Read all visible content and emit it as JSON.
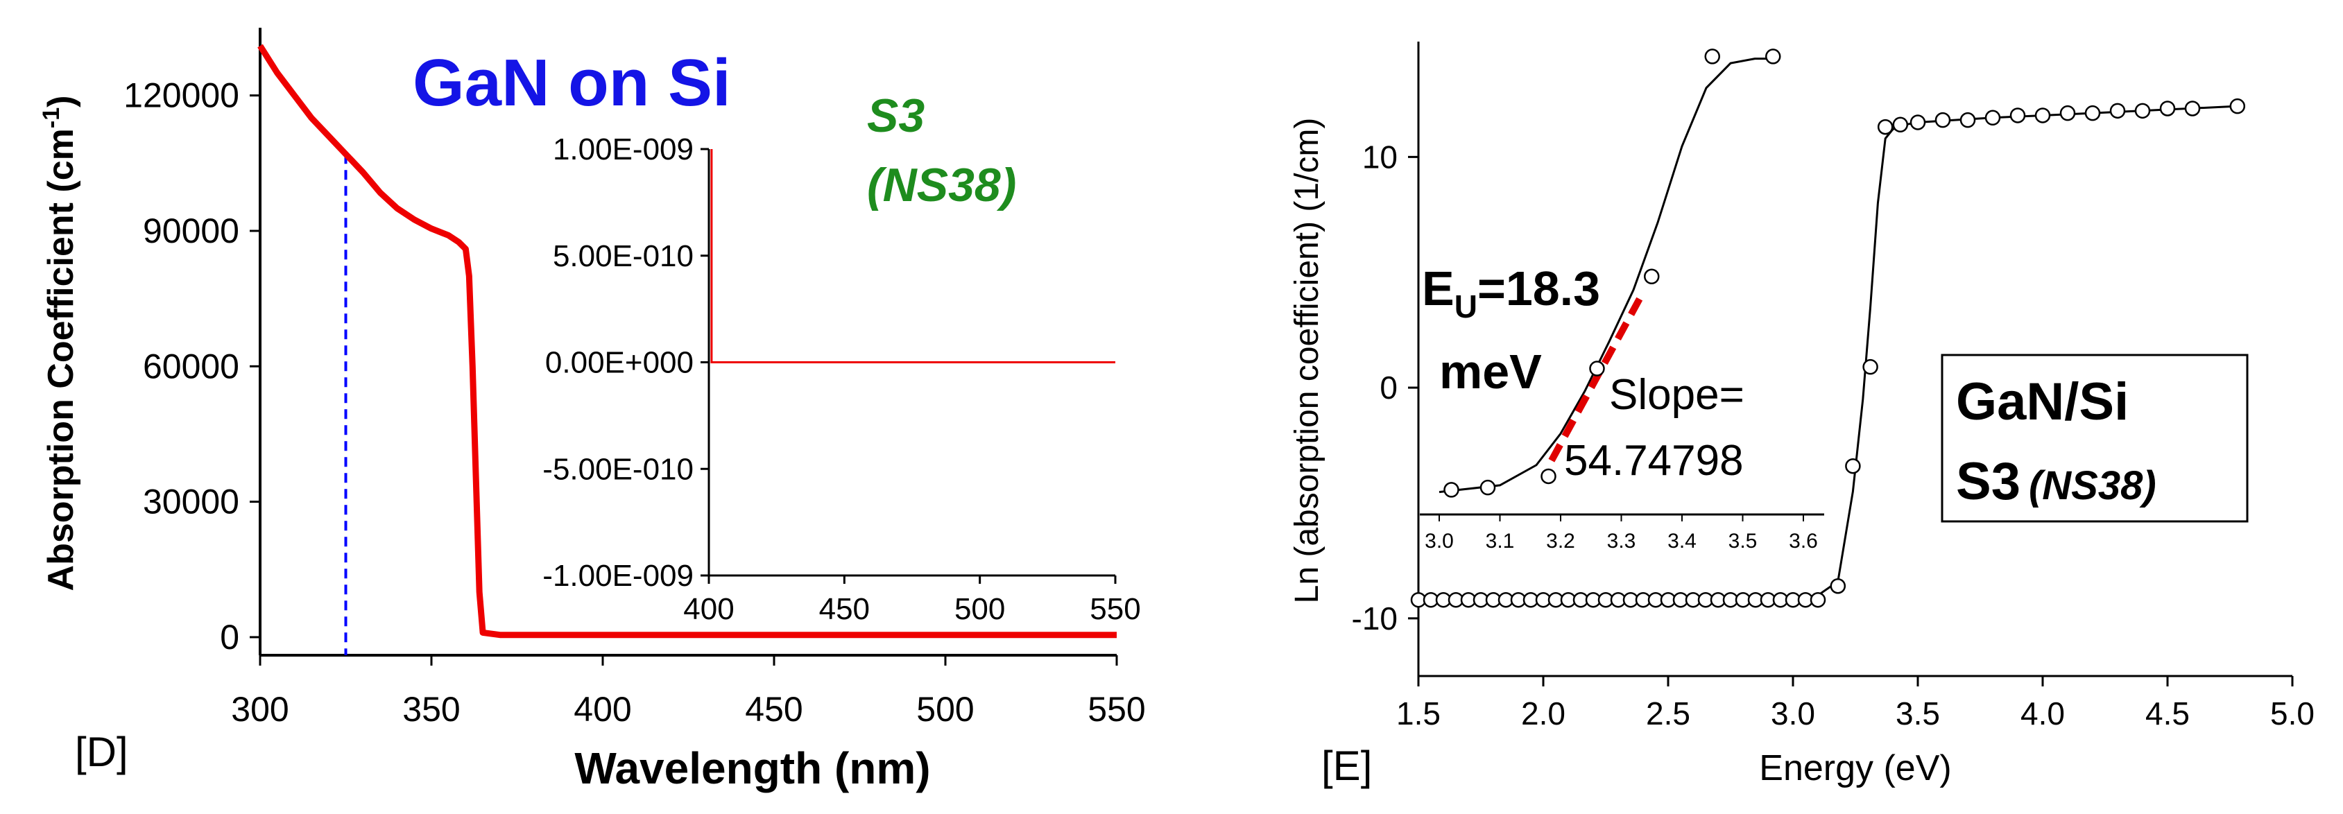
{
  "chart_data": [
    {
      "type": "line",
      "panel_label": "[D]",
      "title": "GaN on Si",
      "sample": [
        "S3",
        "(NS38)"
      ],
      "xlabel": "Wavelength (nm)",
      "ylabel": "Absorption Coefficient (cm",
      "ylabel_sup": "-1",
      "ylabel_end": ")",
      "xlim": [
        300,
        550
      ],
      "ylim": [
        -4000,
        135000
      ],
      "xticks": [
        "300",
        "350",
        "400",
        "450",
        "500",
        "550"
      ],
      "yticks": [
        "0",
        "30000",
        "60000",
        "90000",
        "120000"
      ],
      "marker_line_x": 325,
      "colors": {
        "curve": "#ee0000",
        "marker": "#0000ff",
        "title": "#1414e6",
        "sample": "#1e8c1e"
      },
      "series": [
        {
          "name": "absorption",
          "x": [
            300,
            305,
            310,
            315,
            320,
            325,
            330,
            335,
            340,
            345,
            350,
            355,
            358,
            360,
            361,
            362,
            363,
            364,
            365,
            370,
            400,
            450,
            500,
            550
          ],
          "y": [
            131000,
            125000,
            120000,
            115000,
            111000,
            107000,
            103000,
            98500,
            95000,
            92500,
            90500,
            89000,
            87500,
            86000,
            80000,
            60000,
            35000,
            10000,
            1000,
            500,
            500,
            500,
            500,
            500
          ]
        }
      ],
      "inset": {
        "type": "line",
        "xlim": [
          400,
          550
        ],
        "ylim": [
          -1e-09,
          1e-09
        ],
        "xticks": [
          "400",
          "450",
          "500",
          "550"
        ],
        "yticks": [
          "-1.00E-009",
          "-5.00E-010",
          "0.00E+000",
          "5.00E-010",
          "1.00E-009"
        ],
        "series": [
          {
            "name": "inset",
            "x": [
              401,
              401,
              402,
              550
            ],
            "y": [
              1e-09,
              0,
              0,
              0
            ]
          }
        ]
      }
    },
    {
      "type": "scatter",
      "panel_label": "[E]",
      "xlabel": "Energy (eV)",
      "ylabel": "Ln (absorption coefficient) (1/cm)",
      "xlim": [
        1.5,
        5.0
      ],
      "ylim": [
        -12.5,
        15
      ],
      "xticks": [
        "1.5",
        "2.0",
        "2.5",
        "3.0",
        "3.5",
        "4.0",
        "4.5",
        "5.0"
      ],
      "yticks": [
        "-10",
        "0",
        "10"
      ],
      "legend": {
        "line1": "GaN/Si",
        "line2": "S3",
        "line2_italic": "(NS38)"
      },
      "series": [
        {
          "name": "data",
          "x": [
            1.5,
            1.55,
            1.6,
            1.65,
            1.7,
            1.75,
            1.8,
            1.85,
            1.9,
            1.95,
            2.0,
            2.05,
            2.1,
            2.15,
            2.2,
            2.25,
            2.3,
            2.35,
            2.4,
            2.45,
            2.5,
            2.55,
            2.6,
            2.65,
            2.7,
            2.75,
            2.8,
            2.85,
            2.9,
            2.95,
            3.0,
            3.05,
            3.1,
            3.18,
            3.24,
            3.31,
            3.37,
            3.43,
            3.5,
            3.6,
            3.7,
            3.8,
            3.9,
            4.0,
            4.1,
            4.2,
            4.3,
            4.4,
            4.5,
            4.6,
            4.78
          ],
          "y": [
            -9.2,
            -9.2,
            -9.2,
            -9.2,
            -9.2,
            -9.2,
            -9.2,
            -9.2,
            -9.2,
            -9.2,
            -9.2,
            -9.2,
            -9.2,
            -9.2,
            -9.2,
            -9.2,
            -9.2,
            -9.2,
            -9.2,
            -9.2,
            -9.2,
            -9.2,
            -9.2,
            -9.2,
            -9.2,
            -9.2,
            -9.2,
            -9.2,
            -9.2,
            -9.2,
            -9.2,
            -9.2,
            -9.2,
            -8.6,
            -3.4,
            0.9,
            11.3,
            11.4,
            11.5,
            11.6,
            11.6,
            11.7,
            11.8,
            11.8,
            11.9,
            11.9,
            12.0,
            12.0,
            12.1,
            12.1,
            12.2
          ]
        },
        {
          "name": "fit",
          "x": [
            1.5,
            2.0,
            2.5,
            3.0,
            3.1,
            3.18,
            3.24,
            3.28,
            3.31,
            3.34,
            3.37,
            3.4,
            3.45,
            3.5,
            3.8,
            4.2,
            4.78
          ],
          "y": [
            -9.2,
            -9.2,
            -9.2,
            -9.15,
            -9.0,
            -8.4,
            -4.5,
            -0.5,
            3.5,
            8.0,
            10.8,
            11.2,
            11.4,
            11.5,
            11.7,
            11.9,
            12.2
          ]
        }
      ],
      "inset": {
        "xlim": [
          3.0,
          3.6
        ],
        "xticks": [
          "3.0",
          "3.1",
          "3.2",
          "3.3",
          "3.4",
          "3.5",
          "3.6"
        ],
        "ylim": [
          -6,
          15
        ],
        "points": {
          "x": [
            3.02,
            3.08,
            3.18,
            3.26,
            3.35,
            3.45,
            3.55
          ],
          "y": [
            -4.9,
            -4.8,
            -4.3,
            0.5,
            4.6,
            14.4,
            14.4
          ]
        },
        "fit": {
          "x": [
            3.0,
            3.1,
            3.16,
            3.2,
            3.24,
            3.28,
            3.32,
            3.36,
            3.4,
            3.44,
            3.48,
            3.52,
            3.56
          ],
          "y": [
            -5.0,
            -4.7,
            -3.8,
            -2.4,
            -0.5,
            1.7,
            4.0,
            7.0,
            10.4,
            13.0,
            14.1,
            14.3,
            14.3
          ]
        },
        "slope_line": {
          "x": [
            3.185,
            3.33
          ],
          "y": [
            -3.6,
            3.6
          ]
        },
        "annotation_eu_base": "E",
        "annotation_eu_sub": "U",
        "annotation_eu_value": "=18.3",
        "annotation_eu_unit": "meV",
        "annotation_slope_label": "Slope=",
        "annotation_slope_value": "54.74798"
      }
    }
  ]
}
